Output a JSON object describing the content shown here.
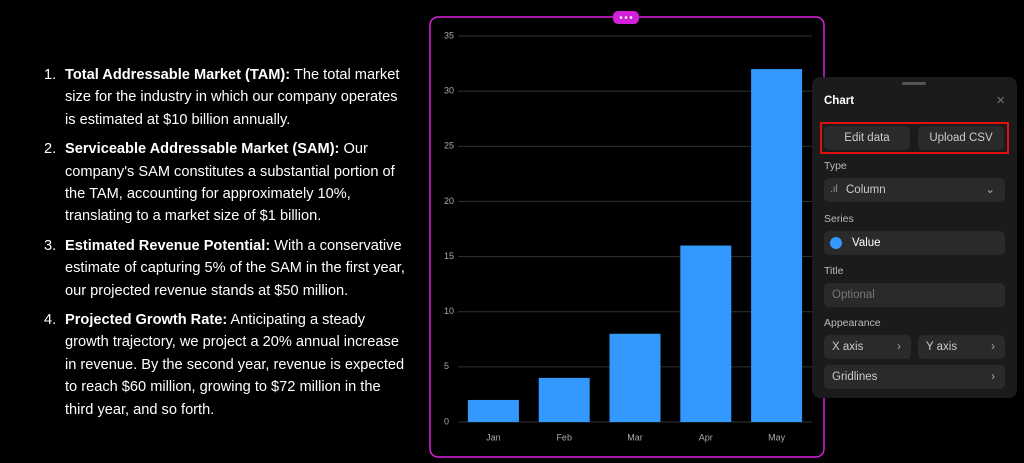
{
  "document": {
    "items": [
      {
        "number": "1.",
        "heading": "Total Addressable Market (TAM):",
        "text": " The total market size for the industry in which our company operates is estimated at $10 billion annually."
      },
      {
        "number": "2.",
        "heading": "Serviceable Addressable Market (SAM):",
        "text": " Our company's SAM constitutes a substantial portion of the TAM, accounting for approximately 10%, translating to a market size of $1 billion."
      },
      {
        "number": "3.",
        "heading": "Estimated Revenue Potential:",
        "text": " With a conservative estimate of capturing 5% of the SAM in the first year, our projected revenue stands at $50 million."
      },
      {
        "number": "4.",
        "heading": "Projected Growth Rate:",
        "text": " Anticipating a steady growth trajectory, we project a 20% annual increase in revenue. By the second year, revenue is expected to reach $60 million, growing to $72 million in the third year, and so forth."
      }
    ]
  },
  "chart_data": {
    "type": "bar",
    "categories": [
      "Jan",
      "Feb",
      "Mar",
      "Apr",
      "May"
    ],
    "values": [
      2,
      4,
      8,
      16,
      32
    ],
    "color": "#3399ff",
    "ylim": [
      0,
      35
    ],
    "yticks": [
      0,
      5,
      10,
      15,
      20,
      25,
      30,
      35
    ],
    "grid": true
  },
  "panel": {
    "title": "Chart",
    "edit_data": "Edit data",
    "upload_csv": "Upload CSV",
    "type_label": "Type",
    "type_value": "Column",
    "series_label": "Series",
    "series_name": "Value",
    "title_label": "Title",
    "title_placeholder": "Optional",
    "appearance_label": "Appearance",
    "x_axis": "X axis",
    "y_axis": "Y axis",
    "gridlines": "Gridlines"
  }
}
